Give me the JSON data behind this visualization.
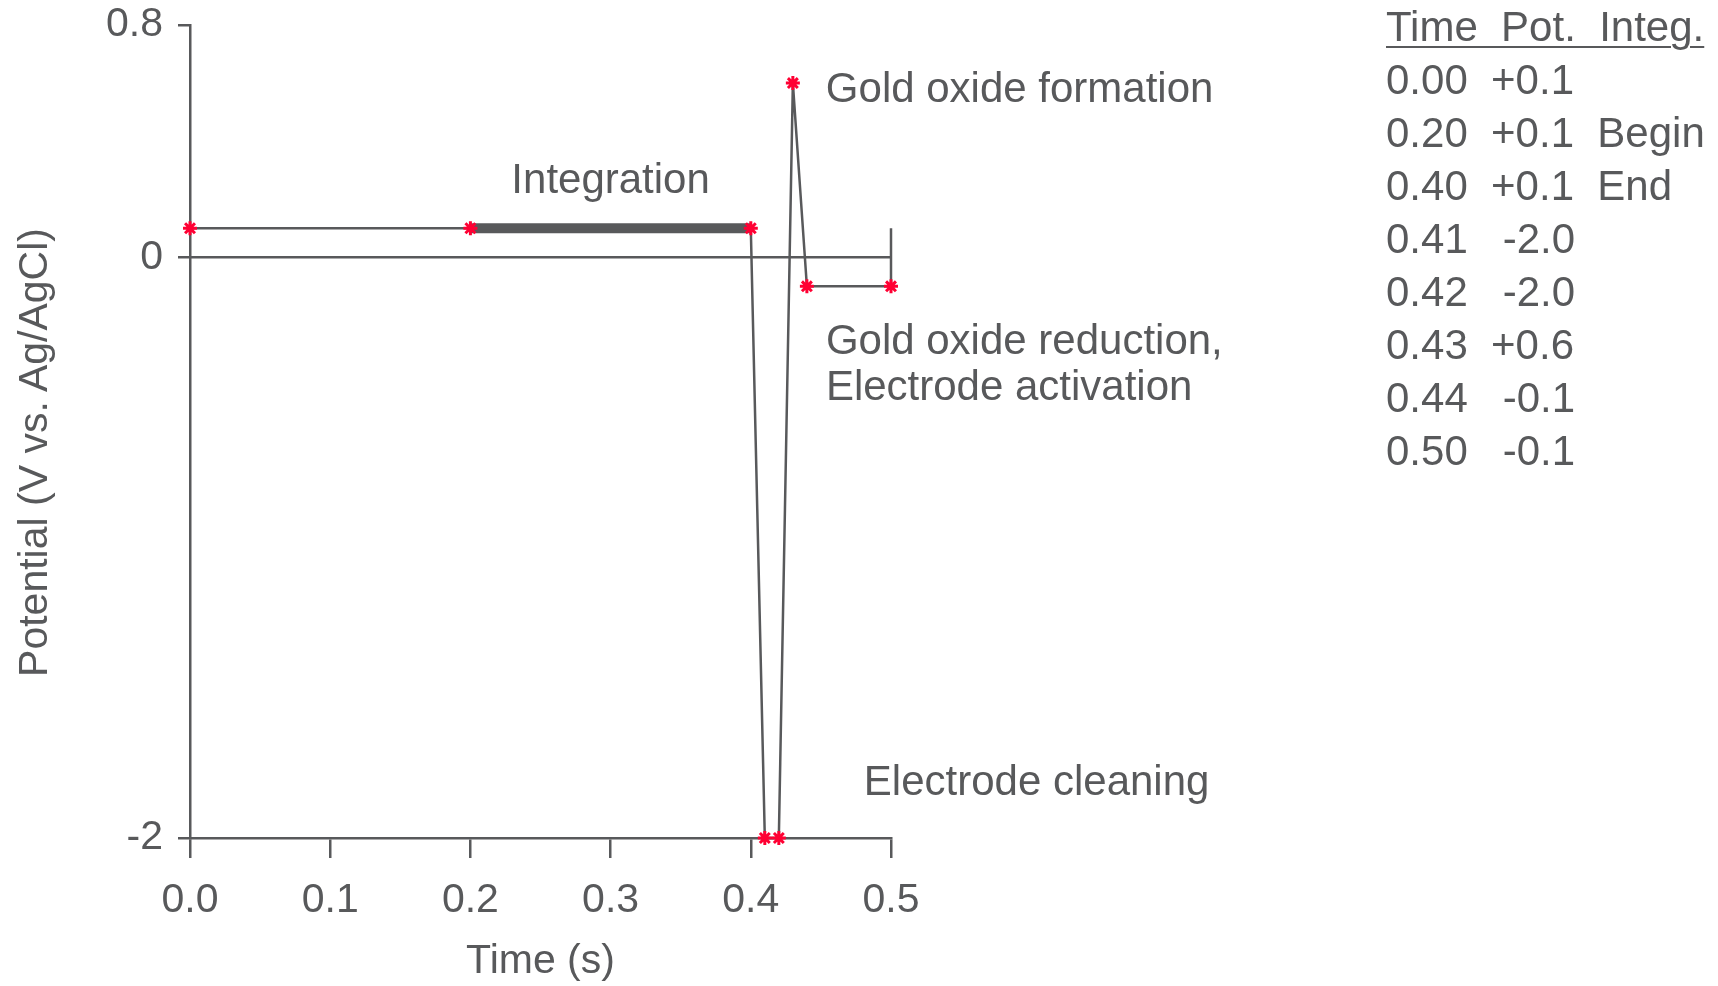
{
  "chart_data": [
    {
      "type": "line",
      "xlabel": "Time (s)",
      "ylabel": "Potential (V vs. Ag/AgCl)",
      "x": [
        0,
        0.2,
        0.4,
        0.41,
        0.42,
        0.43,
        0.44,
        0.5
      ],
      "series": [
        {
          "color": "#58595b",
          "colors": [
            "#ff0033",
            "#ff0033",
            "#ff0033",
            "#ff0033",
            "#ff0033",
            "#ff0033",
            "#ff0033",
            "#ff0033"
          ],
          "values": [
            0.1,
            0.1,
            0.1,
            -2.0,
            -2.0,
            0.6,
            -0.1,
            -0.1
          ]
        },
        {
          "name": "Integration",
          "color": "#58595b",
          "x": [
            0.2,
            0.4
          ],
          "values": [
            0.1,
            0.1
          ],
          "marker": "none"
        },
        {
          "color": "#58595b",
          "x": [
            0.5,
            0.5
          ],
          "values": [
            -0.1,
            0.1
          ],
          "marker": "none"
        }
      ],
      "xlim": [
        0,
        0.5
      ],
      "xticks": [
        {
          "value": 0,
          "label": "0.0"
        },
        {
          "value": 0.1,
          "label": "0.1"
        },
        {
          "value": 0.2,
          "label": "0.2"
        },
        {
          "value": 0.3,
          "label": "0.3"
        },
        {
          "value": 0.4,
          "label": "0.4"
        },
        {
          "value": 0.5,
          "label": "0.5"
        }
      ],
      "ylim": [
        -2,
        0.8
      ],
      "yticks": [
        -2,
        0,
        0.8
      ],
      "marker": "cross",
      "ref_lines": [
        {
          "axis": "y",
          "value": 0,
          "color": "#58595b"
        }
      ],
      "annotations": [
        {
          "text": "Gold oxide formation",
          "x": 0.43,
          "y": 0.6
        },
        {
          "text": "Gold oxide reduction,\nElectrode activation",
          "x": 0.44,
          "y": -0.1
        },
        {
          "text": "Electrode cleaning",
          "x": 0.42,
          "y": -2
        }
      ]
    },
    {
      "type": "other",
      "title": "Time  Pot.  Integ.",
      "annotations": [
        "0.00  +0.1",
        "0.20  +0.1  Begin",
        "0.40  +0.1  End",
        "0.41   -2.0",
        "0.42   -2.0",
        "0.43  +0.6",
        "0.44   -0.1",
        "0.50   -0.1"
      ]
    }
  ]
}
